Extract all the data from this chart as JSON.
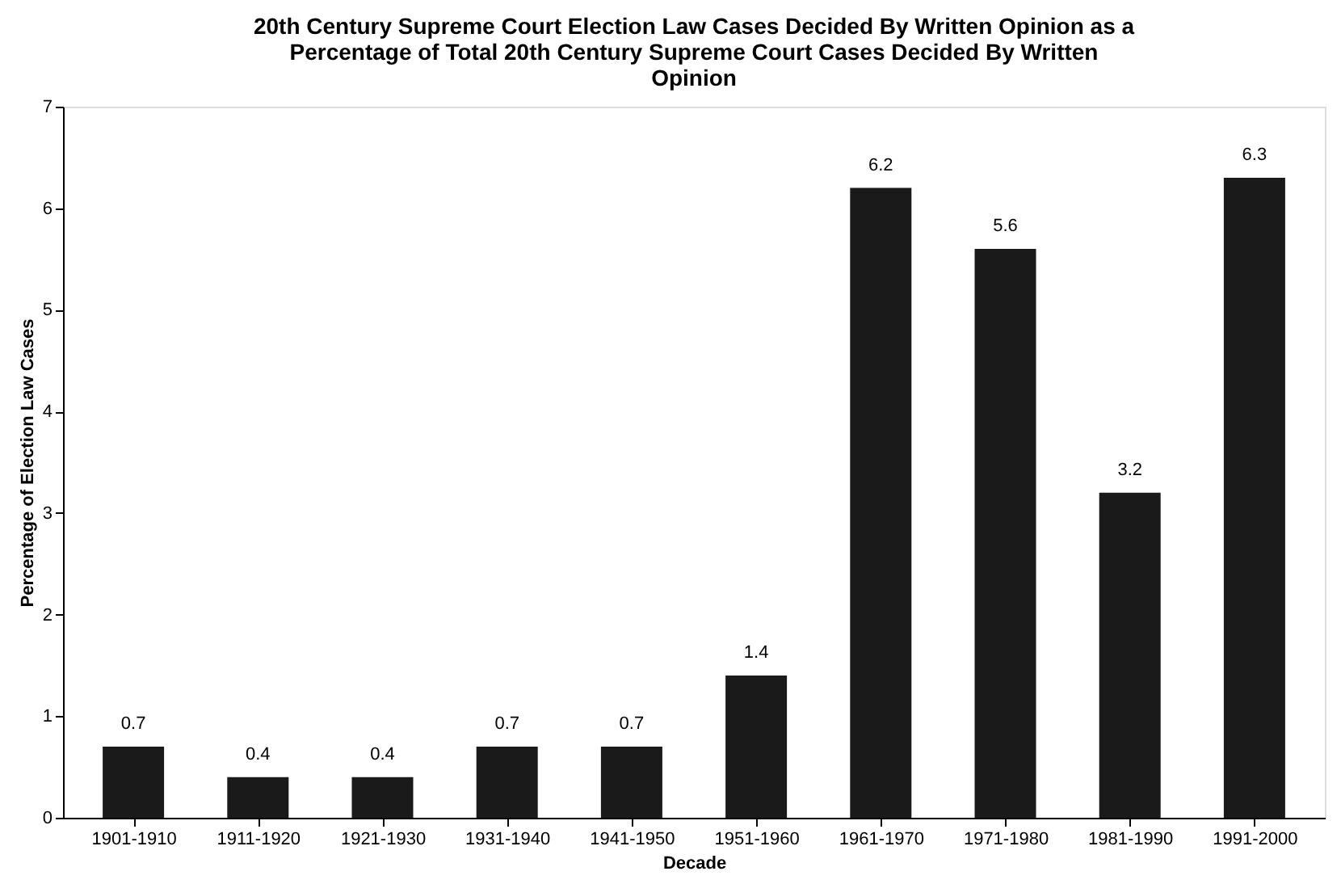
{
  "chart_data": {
    "type": "bar",
    "title": "20th Century Supreme Court Election Law Cases Decided By Written Opinion as a Percentage of Total 20th Century Supreme Court Cases Decided By Written Opinion",
    "xlabel": "Decade",
    "ylabel": "Percentage of Election Law Cases",
    "categories": [
      "1901-1910",
      "1911-1920",
      "1921-1930",
      "1931-1940",
      "1941-1950",
      "1951-1960",
      "1961-1970",
      "1971-1980",
      "1981-1990",
      "1991-2000"
    ],
    "values": [
      0.7,
      0.4,
      0.4,
      0.7,
      0.7,
      1.4,
      6.2,
      5.6,
      3.2,
      6.3
    ],
    "color": "#1a1a1a",
    "ylim": [
      0,
      7
    ],
    "yticks": [
      0,
      1,
      2,
      3,
      4,
      5,
      6,
      7
    ],
    "data_labels": true,
    "grid": false
  }
}
